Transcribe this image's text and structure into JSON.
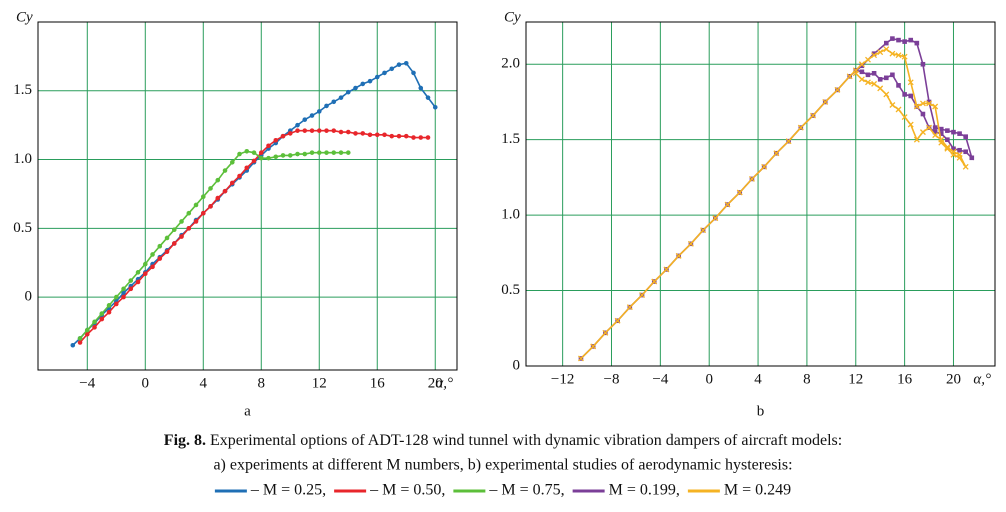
{
  "chart_data": [
    {
      "type": "line",
      "label": "a",
      "x_label": "α,°",
      "y_label": "Cy",
      "xlim": [
        -7.4,
        21.5
      ],
      "ylim": [
        -0.53,
        2.0
      ],
      "xticks": [
        {
          "value": -4,
          "label": "−4"
        },
        0,
        4,
        8,
        12,
        16,
        20
      ],
      "yticks": [
        0,
        0.5,
        {
          "value": 1,
          "label": "1.0"
        },
        1.5
      ],
      "grid": true,
      "grid_color": "#2a9d5c",
      "series": [
        {
          "name": "– M = 0.25,",
          "color": "#1f6fb5",
          "marker": "circle",
          "x": [
            -5,
            -4.5,
            -4,
            -3.5,
            -3,
            -2.5,
            -2,
            -1.5,
            -1,
            -0.5,
            0,
            0.5,
            1,
            1.5,
            2,
            2.5,
            3,
            3.5,
            4,
            4.5,
            5,
            5.5,
            6,
            6.5,
            7,
            7.5,
            8,
            8.5,
            9,
            9.5,
            10,
            10.5,
            11,
            11.5,
            12,
            12.5,
            13,
            13.5,
            14,
            14.5,
            15,
            15.5,
            16,
            16.5,
            17,
            17.5,
            18,
            18.5,
            19,
            19.5,
            20
          ],
          "values": [
            -0.35,
            -0.3,
            -0.24,
            -0.19,
            -0.13,
            -0.08,
            -0.03,
            0.03,
            0.08,
            0.13,
            0.18,
            0.24,
            0.29,
            0.34,
            0.39,
            0.45,
            0.5,
            0.56,
            0.61,
            0.66,
            0.71,
            0.77,
            0.82,
            0.87,
            0.92,
            0.98,
            1.03,
            1.08,
            1.12,
            1.17,
            1.21,
            1.25,
            1.29,
            1.32,
            1.35,
            1.39,
            1.42,
            1.45,
            1.49,
            1.52,
            1.55,
            1.57,
            1.6,
            1.63,
            1.66,
            1.69,
            1.7,
            1.63,
            1.52,
            1.45,
            1.38
          ]
        },
        {
          "name": "– M = 0.50,",
          "color": "#e8262b",
          "marker": "circle",
          "x": [
            -4.5,
            -4,
            -3.5,
            -3,
            -2.5,
            -2,
            -1.5,
            -1,
            -0.5,
            0,
            0.5,
            1,
            1.5,
            2,
            2.5,
            3,
            3.5,
            4,
            4.5,
            5,
            5.5,
            6,
            6.5,
            7,
            7.5,
            8,
            8.5,
            9,
            9.5,
            10,
            10.5,
            11,
            11.5,
            12,
            12.5,
            13,
            13.5,
            14,
            14.5,
            15,
            15.5,
            16,
            16.5,
            17,
            17.5,
            18,
            18.5,
            19,
            19.5
          ],
          "values": [
            -0.33,
            -0.27,
            -0.22,
            -0.16,
            -0.11,
            -0.05,
            0.0,
            0.06,
            0.11,
            0.17,
            0.22,
            0.28,
            0.33,
            0.39,
            0.44,
            0.5,
            0.55,
            0.61,
            0.66,
            0.72,
            0.77,
            0.83,
            0.88,
            0.94,
            0.99,
            1.05,
            1.1,
            1.14,
            1.17,
            1.19,
            1.21,
            1.21,
            1.21,
            1.21,
            1.21,
            1.21,
            1.2,
            1.2,
            1.19,
            1.19,
            1.18,
            1.18,
            1.18,
            1.17,
            1.17,
            1.17,
            1.16,
            1.16,
            1.16
          ]
        },
        {
          "name": "– M = 0.75,",
          "color": "#5cbf3a",
          "marker": "circle",
          "x": [
            -4.5,
            -4,
            -3.5,
            -3,
            -2.5,
            -2,
            -1.5,
            -1,
            -0.5,
            0,
            0.5,
            1,
            1.5,
            2,
            2.5,
            3,
            3.5,
            4,
            4.5,
            5,
            5.5,
            6,
            6.5,
            7,
            7.5,
            8,
            8.5,
            9,
            9.5,
            10,
            10.5,
            11,
            11.5,
            12,
            12.5,
            13,
            13.5,
            14
          ],
          "values": [
            -0.3,
            -0.24,
            -0.18,
            -0.12,
            -0.06,
            0.0,
            0.06,
            0.12,
            0.18,
            0.24,
            0.31,
            0.37,
            0.43,
            0.49,
            0.55,
            0.61,
            0.67,
            0.73,
            0.79,
            0.85,
            0.92,
            0.98,
            1.04,
            1.06,
            1.05,
            1.01,
            1.01,
            1.02,
            1.03,
            1.03,
            1.04,
            1.04,
            1.05,
            1.05,
            1.05,
            1.05,
            1.05,
            1.05
          ]
        }
      ]
    },
    {
      "type": "line",
      "label": "b",
      "x_label": "α,°",
      "y_label": "Cy",
      "xlim": [
        -15,
        23.4
      ],
      "ylim": [
        0,
        2.28
      ],
      "xticks": [
        {
          "value": -12,
          "label": "−12"
        },
        {
          "value": -8,
          "label": "−8"
        },
        {
          "value": -4,
          "label": "−4"
        },
        0,
        4,
        8,
        12,
        16,
        20
      ],
      "yticks": [
        0,
        0.5,
        {
          "value": 1,
          "label": "1.0"
        },
        1.5,
        {
          "value": 2,
          "label": "2.0"
        }
      ],
      "grid": true,
      "grid_color": "#2a9d5c",
      "series": [
        {
          "name": "M = 0.199,",
          "color": "#7b3f98",
          "marker": "square",
          "x": [
            -10.5,
            -9.5,
            -8.5,
            -7.5,
            -6.5,
            -5.5,
            -4.5,
            -3.5,
            -2.5,
            -1.5,
            -0.5,
            0.5,
            1.5,
            2.5,
            3.5,
            4.5,
            5.5,
            6.5,
            7.5,
            8.5,
            9.5,
            10.5,
            11.5,
            12.5,
            13.5,
            14.5,
            15,
            15.5,
            16,
            16.5,
            17,
            17.5,
            18,
            18.5,
            19,
            19.5,
            20,
            20.5,
            21,
            21.5,
            21,
            20.5,
            20,
            19.5,
            19,
            18.5,
            18,
            17.5,
            17,
            16.5,
            16,
            15.5,
            15,
            14.5,
            14,
            13.5,
            13,
            12.5,
            12
          ],
          "values": [
            0.05,
            0.13,
            0.22,
            0.3,
            0.39,
            0.47,
            0.56,
            0.64,
            0.73,
            0.81,
            0.9,
            0.98,
            1.07,
            1.15,
            1.24,
            1.32,
            1.41,
            1.49,
            1.58,
            1.66,
            1.75,
            1.83,
            1.92,
            1.99,
            2.07,
            2.14,
            2.17,
            2.16,
            2.15,
            2.16,
            2.14,
            2.0,
            1.75,
            1.58,
            1.57,
            1.56,
            1.55,
            1.54,
            1.52,
            1.38,
            1.42,
            1.43,
            1.44,
            1.5,
            1.54,
            1.55,
            1.58,
            1.67,
            1.72,
            1.79,
            1.8,
            1.86,
            1.93,
            1.91,
            1.9,
            1.94,
            1.93,
            1.95,
            1.96
          ]
        },
        {
          "name": "M = 0.249",
          "color": "#f5b323",
          "marker": "x",
          "x": [
            -10.5,
            -9.5,
            -8.5,
            -7.5,
            -6.5,
            -5.5,
            -4.5,
            -3.5,
            -2.5,
            -1.5,
            -0.5,
            0.5,
            1.5,
            2.5,
            3.5,
            4.5,
            5.5,
            6.5,
            7.5,
            8.5,
            9.5,
            10.5,
            11.5,
            12,
            12.5,
            13,
            13.5,
            14,
            14.5,
            15,
            15.5,
            16,
            16.5,
            17,
            17.5,
            18,
            18.5,
            19,
            19.5,
            20,
            20.5,
            21,
            20.5,
            20,
            19.5,
            19,
            18.5,
            18,
            17.5,
            17,
            16.5,
            16,
            15.5,
            15,
            14.5,
            14,
            13.5,
            13,
            12.5,
            12
          ],
          "values": [
            0.05,
            0.13,
            0.22,
            0.3,
            0.39,
            0.47,
            0.56,
            0.64,
            0.73,
            0.81,
            0.9,
            0.98,
            1.07,
            1.15,
            1.24,
            1.32,
            1.41,
            1.49,
            1.58,
            1.66,
            1.75,
            1.83,
            1.92,
            1.96,
            2.0,
            2.03,
            2.06,
            2.08,
            2.1,
            2.07,
            2.06,
            2.05,
            1.88,
            1.72,
            1.74,
            1.74,
            1.72,
            1.48,
            1.44,
            1.4,
            1.38,
            1.32,
            1.4,
            1.42,
            1.45,
            1.5,
            1.53,
            1.58,
            1.55,
            1.5,
            1.6,
            1.65,
            1.7,
            1.73,
            1.8,
            1.84,
            1.87,
            1.88,
            1.9,
            1.94
          ]
        }
      ]
    }
  ],
  "caption": {
    "figure": "Fig. 8.",
    "lines": [
      "Experimental options of ADT-128 wind tunnel with dynamic vibration dampers of aircraft models:",
      "a) experiments at different M numbers, b) experimental studies of aerodynamic hysteresis:"
    ]
  }
}
